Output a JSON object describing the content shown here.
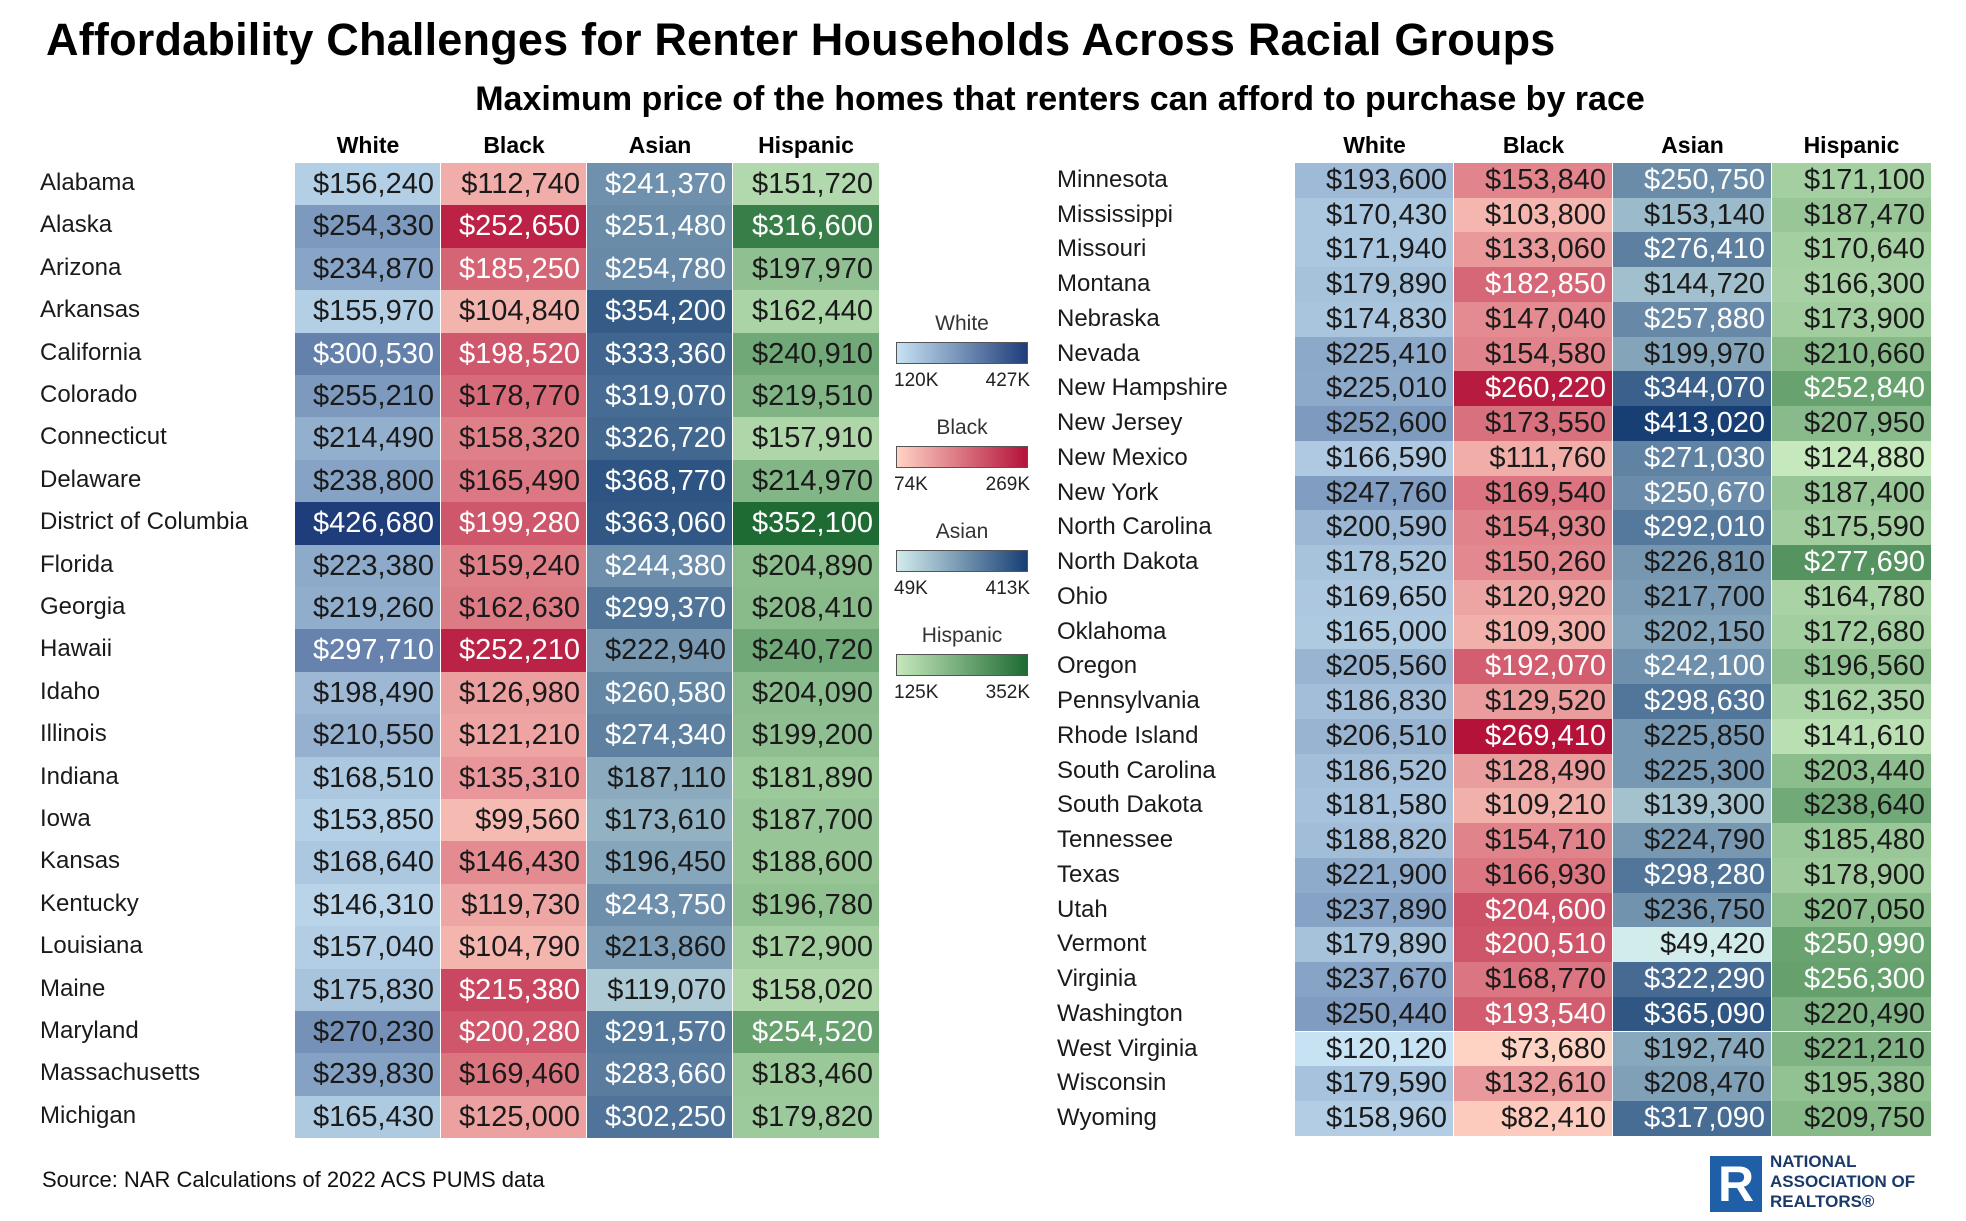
{
  "title": "Affordability Challenges for Renter Households Across Racial Groups",
  "subtitle": "Maximum price of the homes that renters can afford to purchase by race",
  "source": "Source: NAR Calculations of 2022 ACS PUMS data",
  "logo": {
    "line1": "NATIONAL",
    "line2": "ASSOCIATION OF",
    "line3": "REALTORS®",
    "mark": "R"
  },
  "colors": {
    "White": [
      "#c7e2f3",
      "#1f3d7a"
    ],
    "Black": [
      "#ffd3c4",
      "#b5123a"
    ],
    "Asian": [
      "#d2ecec",
      "#173f74"
    ],
    "Hispanic": [
      "#c6e8bd",
      "#1e6b33"
    ]
  },
  "legend": [
    {
      "label": "White",
      "min": "120K",
      "max": "427K",
      "color_key": "White"
    },
    {
      "label": "Black",
      "min": "74K",
      "max": "269K",
      "color_key": "Black"
    },
    {
      "label": "Asian",
      "min": "49K",
      "max": "413K",
      "color_key": "Asian"
    },
    {
      "label": "Hispanic",
      "min": "125K",
      "max": "352K",
      "color_key": "Hispanic"
    }
  ],
  "chart_data": {
    "type": "heatmap",
    "title": "Affordability Challenges for Renter Households Across Racial Groups",
    "subtitle": "Maximum price of the homes that renters can afford to purchase by race",
    "columns": [
      "White",
      "Black",
      "Asian",
      "Hispanic"
    ],
    "scale": {
      "White": [
        120000,
        427000
      ],
      "Black": [
        74000,
        269000
      ],
      "Asian": [
        49000,
        413000
      ],
      "Hispanic": [
        125000,
        352000
      ]
    },
    "rows": [
      {
        "state": "Alabama",
        "values": [
          156240,
          112740,
          241370,
          151720
        ]
      },
      {
        "state": "Alaska",
        "values": [
          254330,
          252650,
          251480,
          316600
        ]
      },
      {
        "state": "Arizona",
        "values": [
          234870,
          185250,
          254780,
          197970
        ]
      },
      {
        "state": "Arkansas",
        "values": [
          155970,
          104840,
          354200,
          162440
        ]
      },
      {
        "state": "California",
        "values": [
          300530,
          198520,
          333360,
          240910
        ]
      },
      {
        "state": "Colorado",
        "values": [
          255210,
          178770,
          319070,
          219510
        ]
      },
      {
        "state": "Connecticut",
        "values": [
          214490,
          158320,
          326720,
          157910
        ]
      },
      {
        "state": "Delaware",
        "values": [
          238800,
          165490,
          368770,
          214970
        ]
      },
      {
        "state": "District of Columbia",
        "values": [
          426680,
          199280,
          363060,
          352100
        ]
      },
      {
        "state": "Florida",
        "values": [
          223380,
          159240,
          244380,
          204890
        ]
      },
      {
        "state": "Georgia",
        "values": [
          219260,
          162630,
          299370,
          208410
        ]
      },
      {
        "state": "Hawaii",
        "values": [
          297710,
          252210,
          222940,
          240720
        ]
      },
      {
        "state": "Idaho",
        "values": [
          198490,
          126980,
          260580,
          204090
        ]
      },
      {
        "state": "Illinois",
        "values": [
          210550,
          121210,
          274340,
          199200
        ]
      },
      {
        "state": "Indiana",
        "values": [
          168510,
          135310,
          187110,
          181890
        ]
      },
      {
        "state": "Iowa",
        "values": [
          153850,
          99560,
          173610,
          187700
        ]
      },
      {
        "state": "Kansas",
        "values": [
          168640,
          146430,
          196450,
          188600
        ]
      },
      {
        "state": "Kentucky",
        "values": [
          146310,
          119730,
          243750,
          196780
        ]
      },
      {
        "state": "Louisiana",
        "values": [
          157040,
          104790,
          213860,
          172900
        ]
      },
      {
        "state": "Maine",
        "values": [
          175830,
          215380,
          119070,
          158020
        ]
      },
      {
        "state": "Maryland",
        "values": [
          270230,
          200280,
          291570,
          254520
        ]
      },
      {
        "state": "Massachusetts",
        "values": [
          239830,
          169460,
          283660,
          183460
        ]
      },
      {
        "state": "Michigan",
        "values": [
          165430,
          125000,
          302250,
          179820
        ]
      },
      {
        "state": "Minnesota",
        "values": [
          193600,
          153840,
          250750,
          171100
        ]
      },
      {
        "state": "Mississippi",
        "values": [
          170430,
          103800,
          153140,
          187470
        ]
      },
      {
        "state": "Missouri",
        "values": [
          171940,
          133060,
          276410,
          170640
        ]
      },
      {
        "state": "Montana",
        "values": [
          179890,
          182850,
          144720,
          166300
        ]
      },
      {
        "state": "Nebraska",
        "values": [
          174830,
          147040,
          257880,
          173900
        ]
      },
      {
        "state": "Nevada",
        "values": [
          225410,
          154580,
          199970,
          210660
        ]
      },
      {
        "state": "New Hampshire",
        "values": [
          225010,
          260220,
          344070,
          252840
        ]
      },
      {
        "state": "New Jersey",
        "values": [
          252600,
          173550,
          413020,
          207950
        ]
      },
      {
        "state": "New Mexico",
        "values": [
          166590,
          111760,
          271030,
          124880
        ]
      },
      {
        "state": "New York",
        "values": [
          247760,
          169540,
          250670,
          187400
        ]
      },
      {
        "state": "North Carolina",
        "values": [
          200590,
          154930,
          292010,
          175590
        ]
      },
      {
        "state": "North Dakota",
        "values": [
          178520,
          150260,
          226810,
          277690
        ]
      },
      {
        "state": "Ohio",
        "values": [
          169650,
          120920,
          217700,
          164780
        ]
      },
      {
        "state": "Oklahoma",
        "values": [
          165000,
          109300,
          202150,
          172680
        ]
      },
      {
        "state": "Oregon",
        "values": [
          205560,
          192070,
          242100,
          196560
        ]
      },
      {
        "state": "Pennsylvania",
        "values": [
          186830,
          129520,
          298630,
          162350
        ]
      },
      {
        "state": "Rhode Island",
        "values": [
          206510,
          269410,
          225850,
          141610
        ]
      },
      {
        "state": "South Carolina",
        "values": [
          186520,
          128490,
          225300,
          203440
        ]
      },
      {
        "state": "South Dakota",
        "values": [
          181580,
          109210,
          139300,
          238640
        ]
      },
      {
        "state": "Tennessee",
        "values": [
          188820,
          154710,
          224790,
          185480
        ]
      },
      {
        "state": "Texas",
        "values": [
          221900,
          166930,
          298280,
          178900
        ]
      },
      {
        "state": "Utah",
        "values": [
          237890,
          204600,
          236750,
          207050
        ]
      },
      {
        "state": "Vermont",
        "values": [
          179890,
          200510,
          49420,
          250990
        ]
      },
      {
        "state": "Virginia",
        "values": [
          237670,
          168770,
          322290,
          256300
        ]
      },
      {
        "state": "Washington",
        "values": [
          250440,
          193540,
          365090,
          220490
        ]
      },
      {
        "state": "West Virginia",
        "values": [
          120120,
          73680,
          192740,
          221210
        ]
      },
      {
        "state": "Wisconsin",
        "values": [
          179590,
          132610,
          208470,
          195380
        ]
      },
      {
        "state": "Wyoming",
        "values": [
          158960,
          82410,
          317090,
          209750
        ]
      }
    ]
  }
}
